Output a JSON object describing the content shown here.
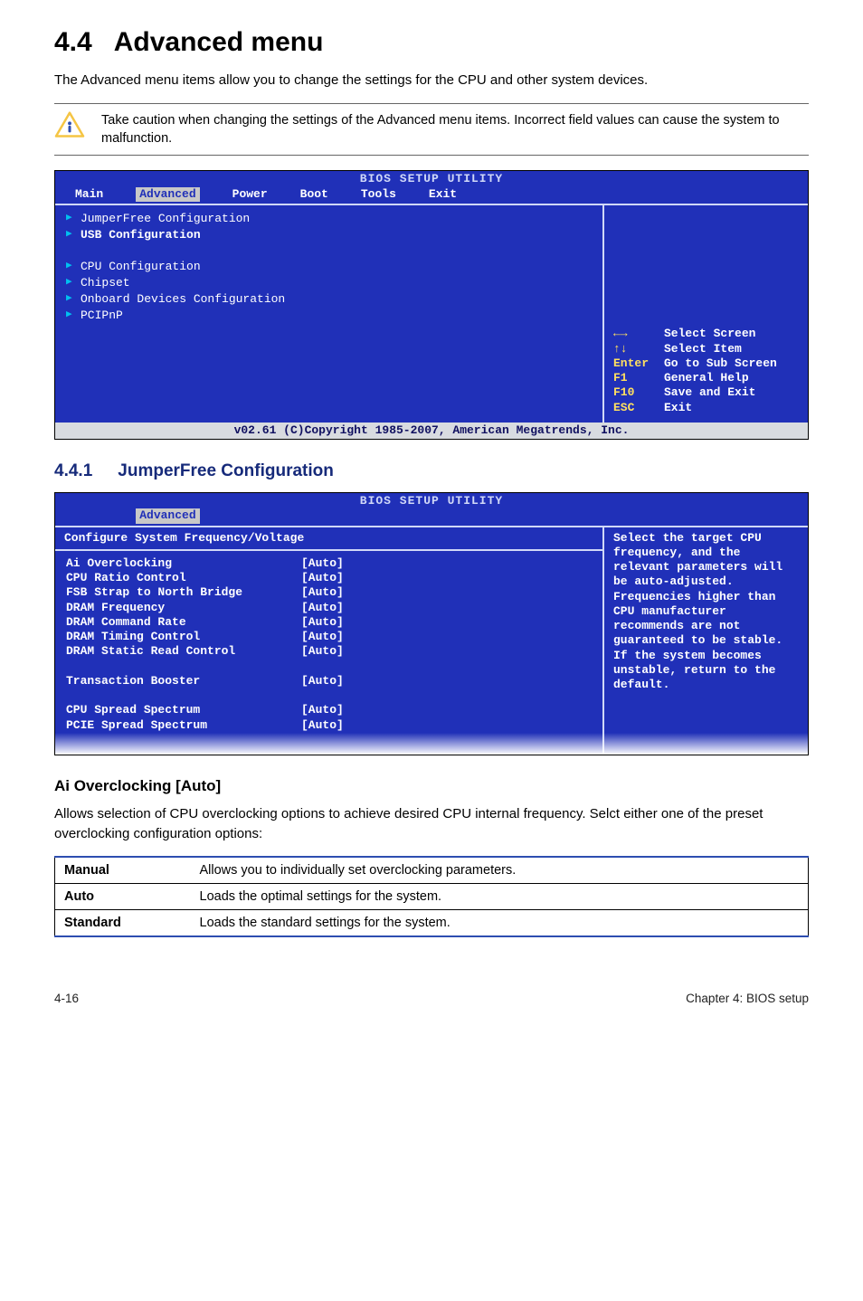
{
  "section": {
    "number": "4.4",
    "title": "Advanced menu"
  },
  "intro": "The Advanced menu items allow you to change the settings for the CPU and other system devices.",
  "note": "Take caution when changing the settings of the Advanced menu items. Incorrect field values can cause the system to malfunction.",
  "bios1": {
    "title": "BIOS SETUP UTILITY",
    "tabs": [
      "Main",
      "Advanced",
      "Power",
      "Boot",
      "Tools",
      "Exit"
    ],
    "tab_selected_index": 1,
    "items": [
      {
        "label": "JumperFree Configuration",
        "bold": false
      },
      {
        "label": "USB Configuration",
        "bold": true
      }
    ],
    "items2": [
      {
        "label": "CPU Configuration",
        "bold": false
      },
      {
        "label": "Chipset",
        "bold": false
      },
      {
        "label": "Onboard Devices Configuration",
        "bold": false
      },
      {
        "label": "PCIPnP",
        "bold": false
      }
    ],
    "help_nav": [
      {
        "key": "←→",
        "txt": "Select Screen"
      },
      {
        "key": "↑↓",
        "txt": "Select Item"
      },
      {
        "key": "Enter",
        "txt": "Go to Sub Screen"
      },
      {
        "key": "F1",
        "txt": "General Help"
      },
      {
        "key": "F10",
        "txt": "Save and Exit"
      },
      {
        "key": "ESC",
        "txt": "Exit"
      }
    ],
    "footer": "v02.61 (C)Copyright 1985-2007, American Megatrends, Inc."
  },
  "subsection": {
    "number": "4.4.1",
    "title": "JumperFree Configuration"
  },
  "bios2": {
    "title": "BIOS SETUP UTILITY",
    "tab": "Advanced",
    "header": "Configure System Frequency/Voltage",
    "rows": [
      {
        "k": "Ai Overclocking",
        "v": "[Auto]"
      },
      {
        "k": "CPU Ratio Control",
        "v": "[Auto]"
      },
      {
        "k": "FSB Strap to North Bridge",
        "v": "[Auto]"
      },
      {
        "k": "DRAM Frequency",
        "v": "[Auto]"
      },
      {
        "k": "DRAM Command Rate",
        "v": "[Auto]"
      },
      {
        "k": "DRAM Timing Control",
        "v": "[Auto]"
      },
      {
        "k": "DRAM Static Read Control",
        "v": "[Auto]"
      }
    ],
    "rows2": [
      {
        "k": "Transaction Booster",
        "v": "[Auto]"
      }
    ],
    "rows3": [
      {
        "k": "CPU Spread Spectrum",
        "v": "[Auto]"
      },
      {
        "k": "PCIE Spread Spectrum",
        "v": "[Auto]"
      }
    ],
    "help": "Select the target CPU frequency, and the relevant parameters will be auto-adjusted. Frequencies higher than CPU manufacturer recommends are not guaranteed to be stable. If the system becomes unstable, return to the default."
  },
  "field": {
    "heading": "Ai Overclocking [Auto]",
    "desc": "Allows selection of CPU overclocking options to achieve desired CPU internal frequency. Selct either one of the preset overclocking configuration options:"
  },
  "table": [
    {
      "k": "Manual",
      "v": "Allows you to individually set overclocking parameters."
    },
    {
      "k": "Auto",
      "v": "Loads the optimal settings for the system."
    },
    {
      "k": "Standard",
      "v": "Loads the standard settings for the system."
    }
  ],
  "page_footer": {
    "left": "4-16",
    "right": "Chapter 4: BIOS setup"
  },
  "colors": {
    "bios_bg": "#2030b8",
    "bios_highlight": "#c8c8c8",
    "bios_yellow": "#ffe060",
    "accent_blue": "#162a7a",
    "table_border": "#2d4db0"
  }
}
